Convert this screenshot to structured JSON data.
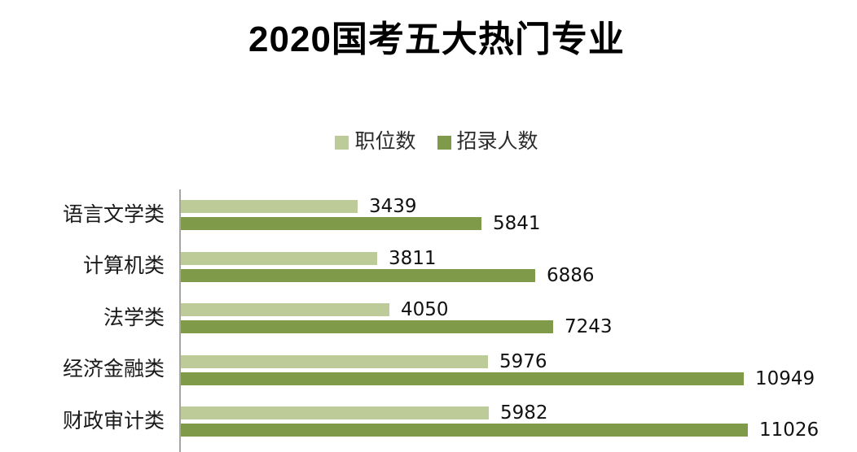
{
  "title": "2020国考五大热门专业",
  "colors": {
    "series_positions": "#BDCB99",
    "series_recruits": "#7F9A48",
    "axis": "#A6A6A6",
    "label_text": "#1A1A1A",
    "title_text": "#000000",
    "background": "#FFFFFF"
  },
  "chart_data": {
    "type": "bar",
    "orientation": "horizontal",
    "title": "2020国考五大热门专业",
    "categories": [
      "语言文学类",
      "计算机类",
      "法学类",
      "经济金融类",
      "财政审计类"
    ],
    "series": [
      {
        "name": "职位数",
        "color": "#BDCB99",
        "values": [
          3439,
          3811,
          4050,
          5976,
          5982
        ]
      },
      {
        "name": "招录人数",
        "color": "#7F9A48",
        "values": [
          5841,
          6886,
          7243,
          10949,
          11026
        ]
      }
    ],
    "data_labels": true,
    "legend_position": "top-center",
    "grid": false,
    "value_axis_shown": false,
    "xlim": [
      0,
      11026
    ]
  }
}
